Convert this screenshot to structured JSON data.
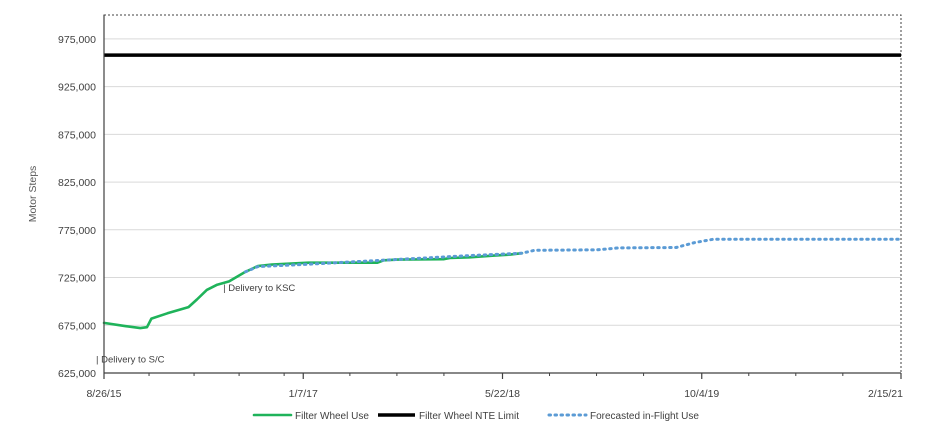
{
  "colors": {
    "filter_wheel_use": "#1fb35a",
    "nte_limit": "#000000",
    "forecast": "#5b9bd5"
  },
  "chart_data": {
    "type": "line",
    "title": "",
    "xlabel": "",
    "ylabel": "Motor Steps",
    "x_axis": {
      "type": "date",
      "range": [
        "2015-08-26",
        "2021-02-15"
      ],
      "ticks": [
        {
          "date": "2015-08-26",
          "label": "8/26/15"
        },
        {
          "date": "2017-01-07",
          "label": "1/7/17"
        },
        {
          "date": "2018-05-22",
          "label": "5/22/18"
        },
        {
          "date": "2019-10-04",
          "label": "10/4/19"
        },
        {
          "date": "2021-02-15",
          "label": "2/15/21"
        }
      ],
      "minor_ticks": [
        "2015-12-17",
        "2016-04-08",
        "2016-07-30",
        "2016-11-20",
        "2017-05-04",
        "2017-08-30",
        "2017-12-26",
        "2018-09-17",
        "2019-01-13",
        "2019-05-11",
        "2020-01-30",
        "2020-05-27",
        "2020-09-22"
      ]
    },
    "y_axis": {
      "range": [
        625000,
        1000000
      ],
      "ticks": [
        625000,
        675000,
        725000,
        775000,
        825000,
        875000,
        925000,
        975000
      ],
      "tick_labels": [
        "625,000",
        "675,000",
        "725,000",
        "775,000",
        "825,000",
        "875,000",
        "925,000",
        "975,000"
      ],
      "grid": true
    },
    "series": [
      {
        "name": "Filter Wheel Use",
        "style": "solid",
        "points": [
          [
            "2015-08-26",
            677500
          ],
          [
            "2015-10-20",
            674000
          ],
          [
            "2015-11-25",
            672000
          ],
          [
            "2015-12-12",
            673000
          ],
          [
            "2015-12-23",
            682000
          ],
          [
            "2016-02-01",
            687500
          ],
          [
            "2016-03-25",
            694000
          ],
          [
            "2016-04-15",
            702000
          ],
          [
            "2016-05-10",
            712000
          ],
          [
            "2016-06-05",
            717500
          ],
          [
            "2016-07-05",
            721000
          ],
          [
            "2016-08-15",
            731000
          ],
          [
            "2016-09-15",
            737000
          ],
          [
            "2016-10-20",
            738500
          ],
          [
            "2016-12-01",
            739500
          ],
          [
            "2017-01-20",
            740500
          ],
          [
            "2017-07-12",
            740500
          ],
          [
            "2017-07-28",
            743000
          ],
          [
            "2017-09-01",
            743800
          ],
          [
            "2017-12-25",
            744200
          ],
          [
            "2018-01-10",
            745500
          ],
          [
            "2018-03-01",
            746200
          ],
          [
            "2018-05-01",
            748000
          ],
          [
            "2018-06-10",
            749000
          ],
          [
            "2018-07-10",
            750500
          ]
        ]
      },
      {
        "name": "Filter Wheel NTE Limit",
        "style": "solid",
        "points": [
          [
            "2015-08-26",
            958000
          ],
          [
            "2021-02-15",
            958000
          ]
        ]
      },
      {
        "name": "Forecasted in-Flight Use",
        "style": "dotted",
        "points": [
          [
            "2016-08-15",
            731000
          ],
          [
            "2016-09-15",
            736500
          ],
          [
            "2017-01-20",
            739000
          ],
          [
            "2018-03-01",
            748000
          ],
          [
            "2018-07-10",
            750500
          ],
          [
            "2018-08-10",
            753500
          ],
          [
            "2019-01-15",
            754000
          ],
          [
            "2019-03-10",
            756000
          ],
          [
            "2019-08-01",
            756500
          ],
          [
            "2019-09-15",
            761500
          ],
          [
            "2019-11-01",
            765000
          ],
          [
            "2021-02-15",
            765000
          ]
        ]
      }
    ],
    "annotations": [
      {
        "label": "| Delivery to S/C",
        "date": "2015-08-26",
        "y": 636000
      },
      {
        "label": "| Delivery to KSC",
        "date": "2016-07-05",
        "y": 711000
      }
    ],
    "legend": {
      "placement": "bottom",
      "entries": [
        "Filter Wheel Use",
        "Filter Wheel NTE Limit",
        "Forecasted in-Flight Use"
      ]
    }
  }
}
